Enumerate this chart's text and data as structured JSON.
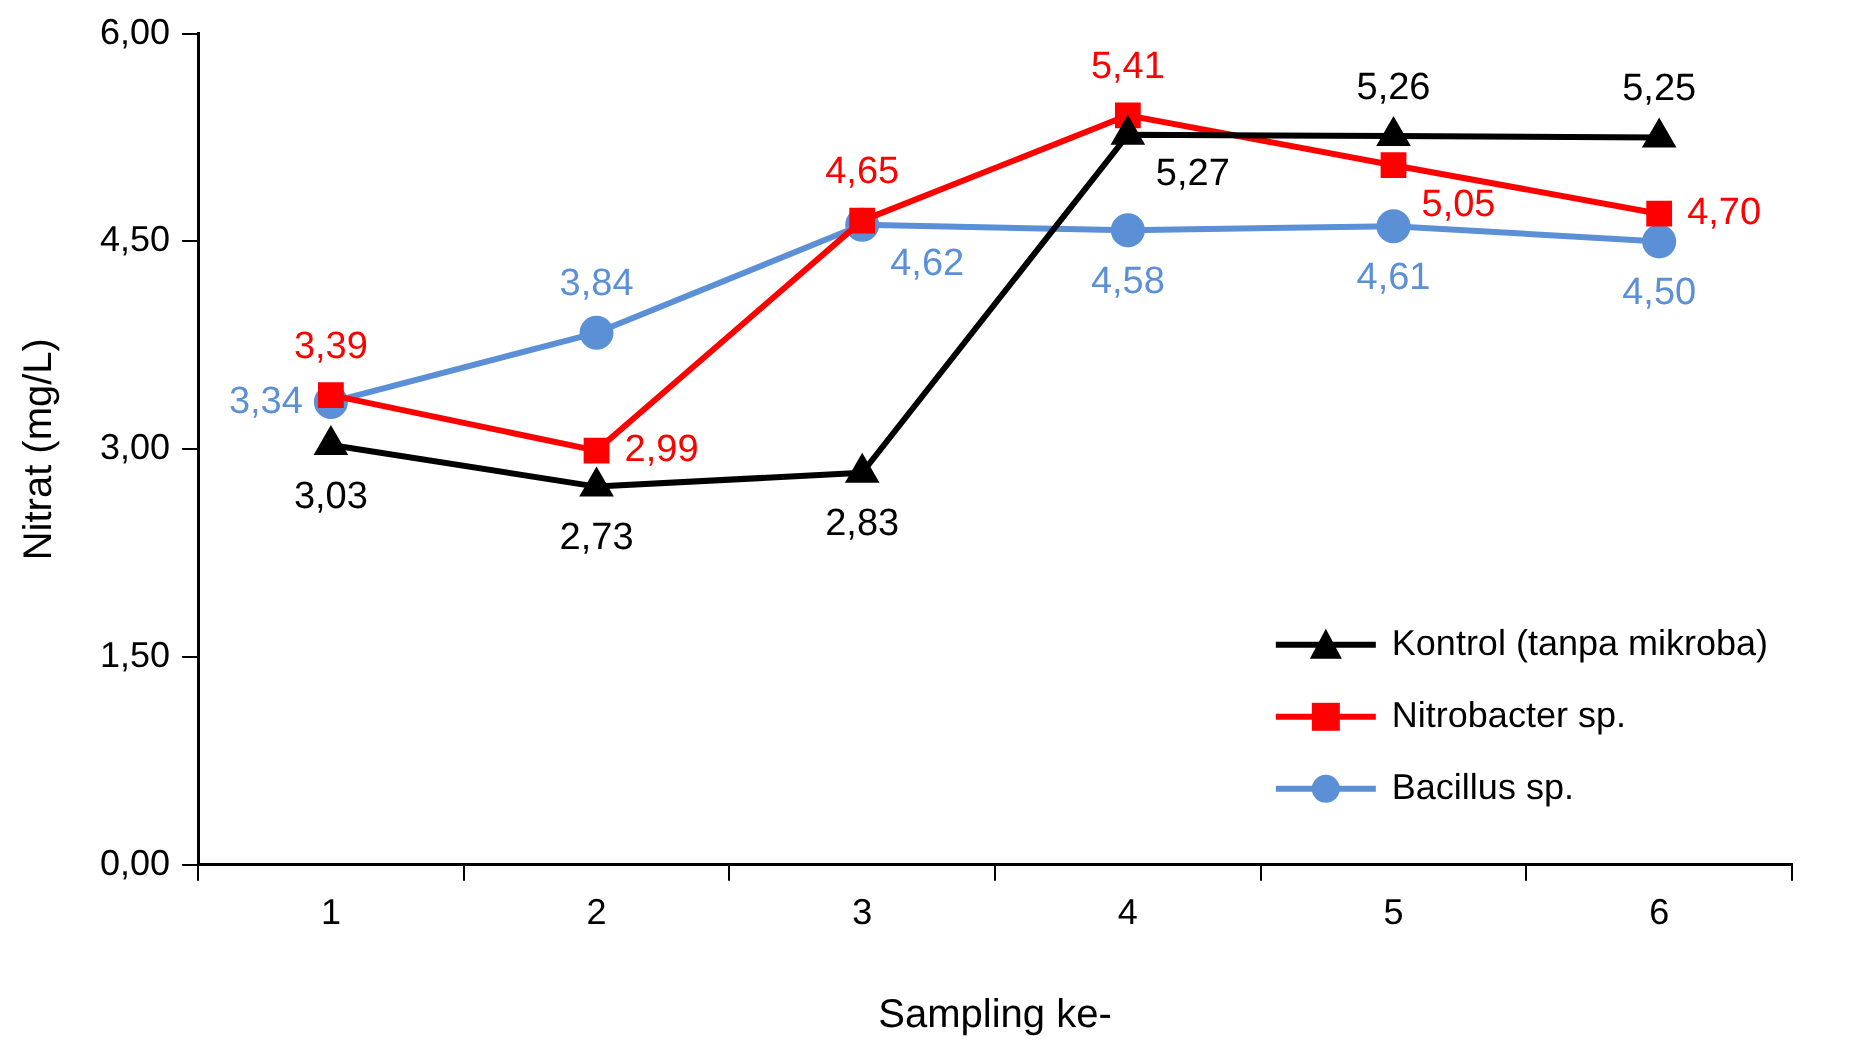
{
  "chart_data": {
    "type": "line",
    "xlabel": "Sampling ke-",
    "ylabel": "Nitrat (mg/L)",
    "categories": [
      "1",
      "2",
      "3",
      "4",
      "5",
      "6"
    ],
    "ylim": [
      0,
      6
    ],
    "yticks": [
      {
        "value": 0,
        "label": "0,00"
      },
      {
        "value": 1.5,
        "label": "1,50"
      },
      {
        "value": 3,
        "label": "3,00"
      },
      {
        "value": 4.5,
        "label": "4,50"
      },
      {
        "value": 6,
        "label": "6,00"
      }
    ],
    "grid": false,
    "legend": "bottom right",
    "line_style": "solid",
    "series": [
      {
        "name": "Kontrol (tanpa mikroba)",
        "color": "#000000",
        "marker": "triangle",
        "values": [
          3.03,
          2.73,
          2.83,
          5.27,
          5.26,
          5.25
        ],
        "value_labels": [
          "3,03",
          "2,73",
          "2,83",
          "5,27",
          "5,26",
          "5,25"
        ]
      },
      {
        "name": "Nitrobacter sp.",
        "color": "#ff0000",
        "marker": "square",
        "values": [
          3.39,
          2.99,
          4.65,
          5.41,
          5.05,
          4.7
        ],
        "value_labels": [
          "3,39",
          "2,99",
          "4,65",
          "5,41",
          "5,05",
          "4,70"
        ]
      },
      {
        "name": "Bacillus sp.",
        "color": "#5b8fd6",
        "marker": "circle",
        "values": [
          3.34,
          3.84,
          4.62,
          4.58,
          4.61,
          4.5
        ],
        "value_labels": [
          "3,34",
          "3,84",
          "4,62",
          "4,58",
          "4,61",
          "4,50"
        ]
      }
    ]
  }
}
